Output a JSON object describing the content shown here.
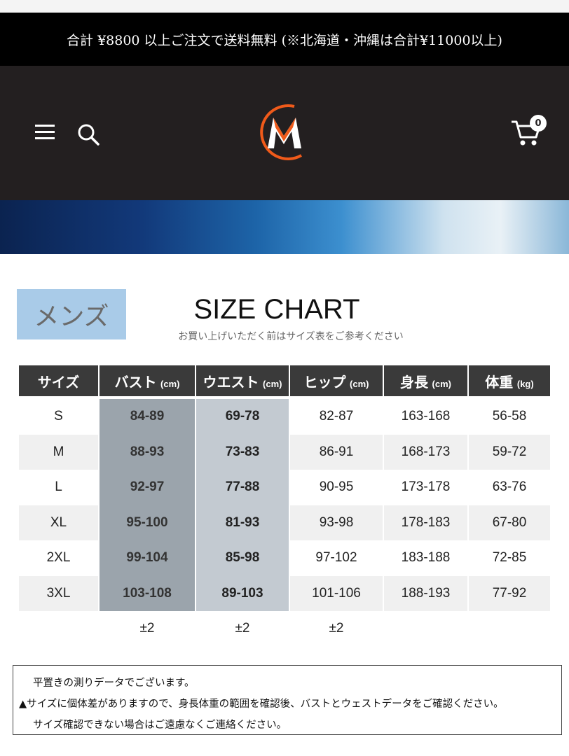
{
  "announcement": "合計 ¥8800 以上ご注文で送料無料 (※北海道・沖縄は合計¥11000以上)",
  "header": {
    "cart_count": "0",
    "logo_letter": "M"
  },
  "colors": {
    "header_bg": "#231f20",
    "logo_orange": "#f05a1a",
    "bust_col": "#9ba4ac",
    "waist_col": "#c3cad1",
    "mens_label_bg": "#a9cbe8"
  },
  "section": {
    "mens_label": "メンズ",
    "title": "SIZE CHART",
    "subtitle": "お買い上げいただく前はサイズ表をご参考ください"
  },
  "table": {
    "headers": [
      {
        "name": "サイズ",
        "unit": ""
      },
      {
        "name": "バスト",
        "unit": "(cm)"
      },
      {
        "name": "ウエスト",
        "unit": "(cm)"
      },
      {
        "name": "ヒップ",
        "unit": "(cm)"
      },
      {
        "name": "身長",
        "unit": "(cm)"
      },
      {
        "name": "体重",
        "unit": "(kg)"
      }
    ],
    "rows": [
      [
        "S",
        "84-89",
        "69-78",
        "82-87",
        "163-168",
        "56-58"
      ],
      [
        "M",
        "88-93",
        "73-83",
        "86-91",
        "168-173",
        "59-72"
      ],
      [
        "L",
        "92-97",
        "77-88",
        "90-95",
        "173-178",
        "63-76"
      ],
      [
        "XL",
        "95-100",
        "81-93",
        "93-98",
        "178-183",
        "67-80"
      ],
      [
        "2XL",
        "99-104",
        "85-98",
        "97-102",
        "183-188",
        "72-85"
      ],
      [
        "3XL",
        "103-108",
        "89-103",
        "101-106",
        "188-193",
        "77-92"
      ],
      [
        "",
        "±2",
        "±2",
        "±2",
        "",
        ""
      ]
    ]
  },
  "notes": [
    "平置きの測りデータでございます。",
    "▲サイズに個体差がありますので、身長体重の範囲を確認後、バストとウェストデータをご確認ください。",
    "サイズ確認できない場合はご遠慮なくご連絡ください。"
  ]
}
